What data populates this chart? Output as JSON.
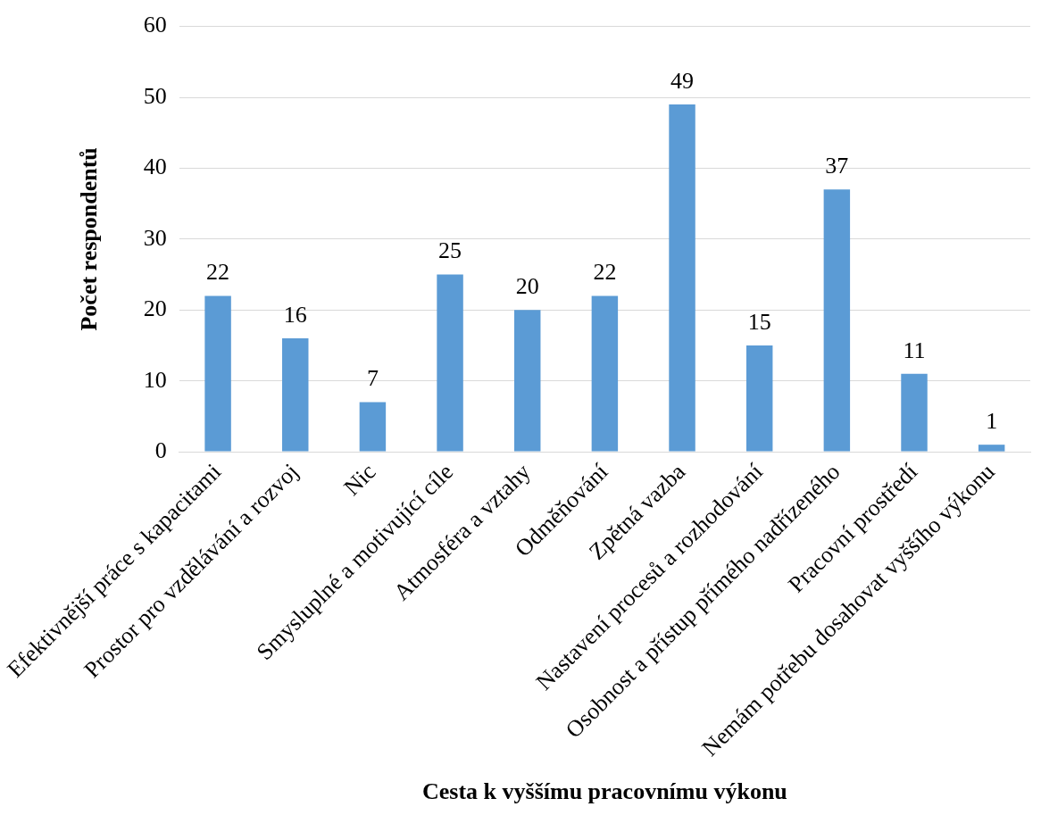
{
  "chart_data": {
    "type": "bar",
    "xlabel": "Cesta k vyššímu pracovnímu výkonu",
    "ylabel": "Počet respondentů",
    "categories": [
      "Efektivnější práce s kapacitami",
      "Prostor pro vzdělávání a rozvoj",
      "Nic",
      "Smysluplné a motivující cíle",
      "Atmosféra a vztahy",
      "Odměňování",
      "Zpětná vazba",
      "Nastavení procesů a rozhodování",
      "Osobnost a přístup přímého nadřízeného",
      "Pracovní prostředí",
      "Nemám potřebu dosahovat vyššího výkonu"
    ],
    "values": [
      22,
      16,
      7,
      25,
      20,
      22,
      49,
      15,
      37,
      11,
      1
    ],
    "color": "#5b9bd5",
    "ylim": [
      0,
      60
    ],
    "yticks": [
      0,
      10,
      20,
      30,
      40,
      50,
      60
    ],
    "grid": "y",
    "legend": false,
    "data_labels": true
  }
}
